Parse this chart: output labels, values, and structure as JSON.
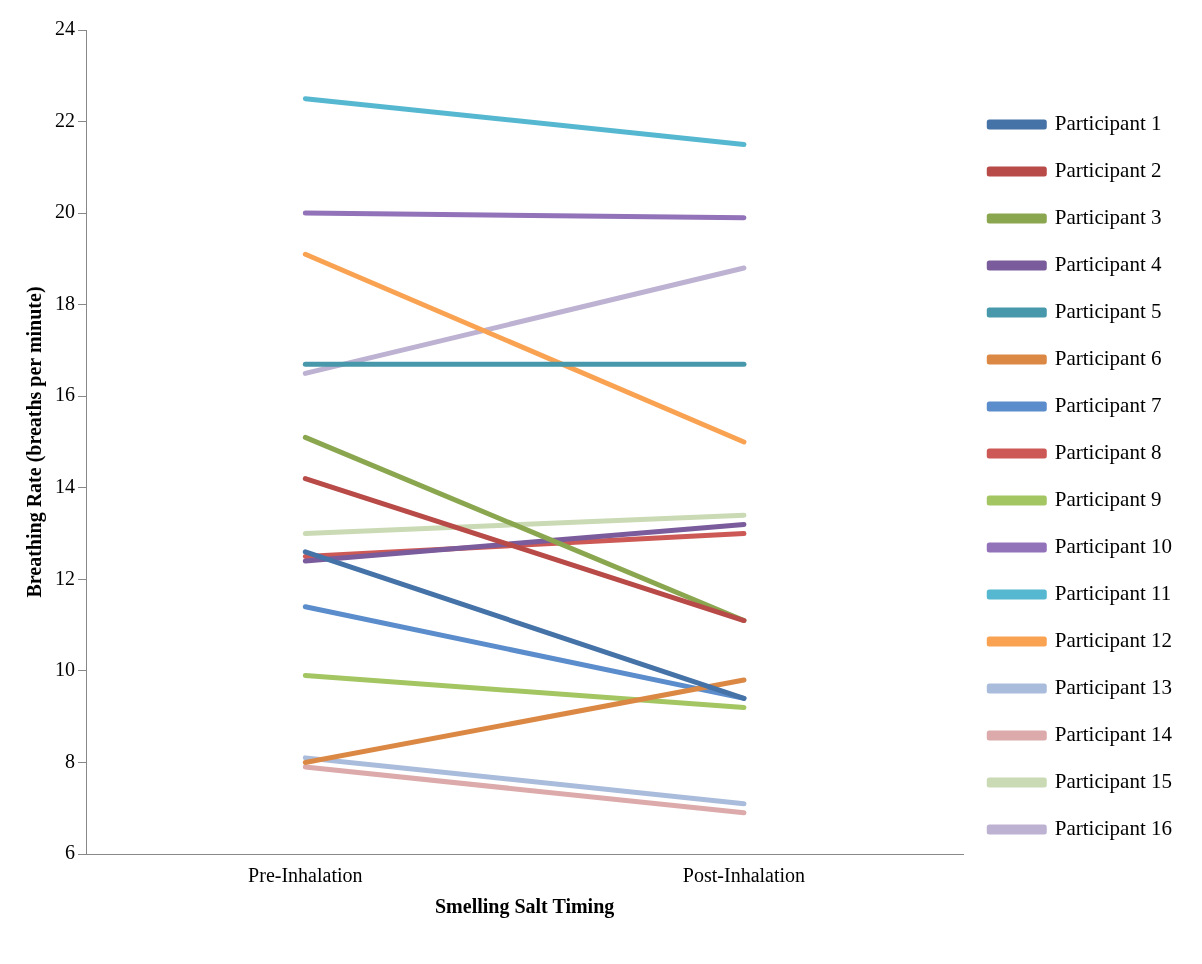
{
  "chart_data": {
    "type": "line",
    "xlabel": "Smelling Salt Timing",
    "ylabel": "Breathing Rate (breaths per minute)",
    "categories": [
      "Pre-Inhalation",
      "Post-Inhalation"
    ],
    "ylim": [
      6,
      24
    ],
    "yticks": [
      6,
      8,
      10,
      12,
      14,
      16,
      18,
      20,
      22,
      24
    ],
    "grid": false,
    "legend": "right",
    "marker": "none",
    "line_style": "solid",
    "series": [
      {
        "name": "Participant 1",
        "color": "#4572a7",
        "values": [
          12.6,
          9.4
        ]
      },
      {
        "name": "Participant 2",
        "color": "#b84a47",
        "values": [
          14.2,
          11.1
        ]
      },
      {
        "name": "Participant 3",
        "color": "#8aa64f",
        "values": [
          15.1,
          11.1
        ]
      },
      {
        "name": "Participant 4",
        "color": "#7a5c9c",
        "values": [
          12.4,
          13.2
        ]
      },
      {
        "name": "Participant 5",
        "color": "#4698aa",
        "values": [
          16.7,
          16.7
        ]
      },
      {
        "name": "Participant 6",
        "color": "#db8844",
        "values": [
          8.0,
          9.8
        ]
      },
      {
        "name": "Participant 7",
        "color": "#5b8ccb",
        "values": [
          11.4,
          9.4
        ]
      },
      {
        "name": "Participant 8",
        "color": "#cc5955",
        "values": [
          12.5,
          13.0
        ]
      },
      {
        "name": "Participant 9",
        "color": "#a3c662",
        "values": [
          9.9,
          9.2
        ]
      },
      {
        "name": "Participant 10",
        "color": "#9272b8",
        "values": [
          20.0,
          19.9
        ]
      },
      {
        "name": "Participant 11",
        "color": "#55b8d0",
        "values": [
          22.5,
          21.5
        ]
      },
      {
        "name": "Participant 12",
        "color": "#f9a352",
        "values": [
          19.1,
          15.0
        ]
      },
      {
        "name": "Participant 13",
        "color": "#aabcdb",
        "values": [
          8.1,
          7.1
        ]
      },
      {
        "name": "Participant 14",
        "color": "#dcaaaa",
        "values": [
          7.9,
          6.9
        ]
      },
      {
        "name": "Participant 15",
        "color": "#cadab4",
        "values": [
          13.0,
          13.4
        ]
      },
      {
        "name": "Participant 16",
        "color": "#bdb2d2",
        "values": [
          16.5,
          18.8
        ]
      }
    ]
  }
}
